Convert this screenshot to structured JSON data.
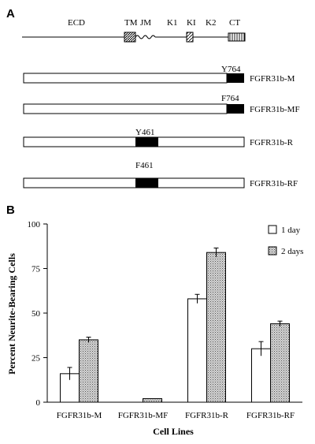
{
  "panel_a": {
    "label": "A",
    "domain_labels": [
      "ECD",
      "TM",
      "JM",
      "K1",
      "KI",
      "K2",
      "CT"
    ],
    "constructs": [
      {
        "site": "Y764",
        "name": "FGFR31b-M"
      },
      {
        "site": "F764",
        "name": "FGFR31b-MF"
      },
      {
        "site": "Y461",
        "name": "FGFR31b-R"
      },
      {
        "site": "F461",
        "name": "FGFR31b-RF"
      }
    ]
  },
  "panel_b": {
    "label": "B"
  },
  "chart_data": {
    "type": "bar",
    "title": "",
    "xlabel": "Cell Lines",
    "ylabel": "Percent Neurite-Bearing Cells",
    "ylim": [
      0,
      100
    ],
    "yticks": [
      "0",
      "25",
      "50",
      "75",
      "100"
    ],
    "categories": [
      "FGFR31b-M",
      "FGFR31b-MF",
      "FGFR31b-R",
      "FGFR31b-RF"
    ],
    "series": [
      {
        "name": "1 day",
        "values": [
          16,
          0,
          58,
          30
        ],
        "errors": [
          3.5,
          0,
          2.5,
          4
        ],
        "fill": "#ffffff"
      },
      {
        "name": "2 days",
        "values": [
          35,
          2,
          84,
          44
        ],
        "errors": [
          1.5,
          0,
          2.5,
          1.5
        ],
        "fill": "dotted"
      }
    ],
    "legend_position": "top-right",
    "grid": false
  }
}
